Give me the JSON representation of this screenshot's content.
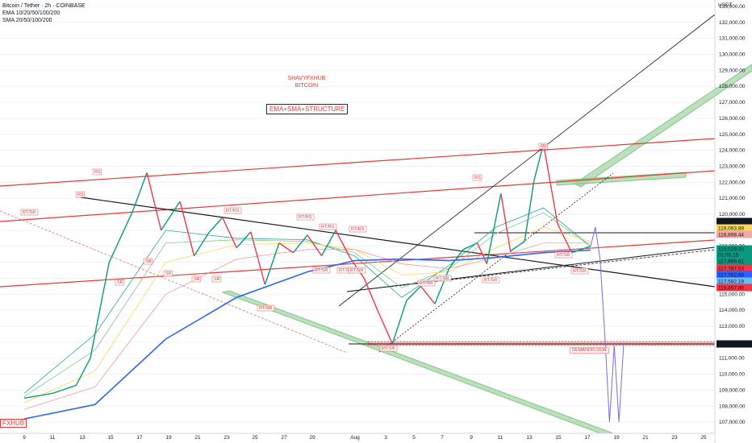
{
  "header": {
    "symbol_line": "Bitcoin / Tether · 2h · COINBASE",
    "ema_line": "EMA 10/20/50/100/200",
    "sma_line": "SMA 20/50/100/200"
  },
  "currency": "USDT",
  "annotations": {
    "author": "SHAVYFXHUB",
    "asset": "BITCOIN",
    "strategy": "EMA+SMA+STRUCTURE",
    "demand_label": "DEMANDFLOOR",
    "watermark": "FXHUB"
  },
  "structure_labels": [
    "RS",
    "RS",
    "RS",
    "RT/RS",
    "RT/RS",
    "RT/RS",
    "RT/RS",
    "RT/SR",
    "RT/SR",
    "RT/SR",
    "RT/SR",
    "RT/SR",
    "SR",
    "SR",
    "SR",
    "SR",
    "SR",
    "RT/SR",
    "RT/SR",
    "RT/SR",
    "RT/SR",
    "RT/SR",
    "RS",
    "RT/SR"
  ],
  "chart_data": {
    "type": "line",
    "title": "Bitcoin / Tether · 2h · COINBASE",
    "xlabel": "",
    "ylabel": "USDT",
    "x_ticks": [
      "9",
      "11",
      "13",
      "15",
      "17",
      "19",
      "21",
      "23",
      "25",
      "27",
      "29",
      "Aug",
      "3",
      "5",
      "7",
      "9",
      "11",
      "13",
      "15",
      "17",
      "19",
      "21",
      "23",
      "25"
    ],
    "y_ticks": [
      "107,000.00",
      "108,000.00",
      "109,000.00",
      "110,000.00",
      "111,000.00",
      "112,000.00",
      "113,000.00",
      "114,000.00",
      "115,000.00",
      "116,000.00",
      "117,000.00",
      "118,000.00",
      "119,000.00",
      "120,000.00",
      "121,000.00",
      "122,000.00",
      "123,000.00",
      "124,000.00",
      "125,000.00",
      "126,000.00",
      "127,000.00",
      "128,000.00",
      "129,000.00",
      "130,000.00",
      "131,000.00",
      "132,000.00",
      "133,000.00"
    ],
    "ylim": [
      106300,
      133400
    ],
    "price_tags": [
      {
        "value": "119,081.74",
        "color": "#131722"
      },
      {
        "value": "119,063.89",
        "color": "#f6d860"
      },
      {
        "value": "118,898.44",
        "color": "#f0a8a8"
      },
      {
        "value": "118,029.39",
        "color": "#089981"
      },
      {
        "value": "01:55:15",
        "color": "#089981"
      },
      {
        "value": "117,859.61",
        "color": "#089981"
      },
      {
        "value": "117,787.53",
        "color": "#f23645"
      },
      {
        "value": "117,762.69",
        "color": "#2962ff"
      },
      {
        "value": "117,582.19",
        "color": "#6fb8f8"
      },
      {
        "value": "116,857.85",
        "color": "#f23645"
      },
      {
        "value": "111,899.98",
        "color": "#131722"
      }
    ],
    "series": [
      {
        "values": [
          [
            0,
            108500
          ],
          [
            6,
            108800
          ],
          [
            11,
            109300
          ],
          [
            14,
            111000
          ],
          [
            18,
            117000
          ],
          [
            23,
            120200
          ],
          [
            26,
            122600
          ],
          [
            29,
            119000
          ],
          [
            33,
            120800
          ],
          [
            36,
            117400
          ],
          [
            39,
            118800
          ],
          [
            42,
            119800
          ],
          [
            45,
            117900
          ],
          [
            48,
            118900
          ],
          [
            51,
            115600
          ],
          [
            54,
            118200
          ],
          [
            57,
            117600
          ],
          [
            60,
            118700
          ],
          [
            63,
            117400
          ],
          [
            66,
            119000
          ],
          [
            69,
            117300
          ],
          [
            72,
            116000
          ],
          [
            75,
            113900
          ],
          [
            78,
            111900
          ],
          [
            81,
            114600
          ],
          [
            84,
            115500
          ],
          [
            87,
            114400
          ],
          [
            90,
            116600
          ],
          [
            93,
            117800
          ],
          [
            96,
            118200
          ],
          [
            98,
            116900
          ],
          [
            101,
            121300
          ],
          [
            103,
            117700
          ],
          [
            106,
            118300
          ],
          [
            108,
            122100
          ],
          [
            110,
            124400
          ],
          [
            113,
            119400
          ],
          [
            116,
            117600
          ],
          [
            119,
            117900
          ],
          [
            120,
            118000
          ]
        ]
      }
    ],
    "ema": [
      {
        "values": [
          [
            0,
            108800
          ],
          [
            15,
            112500
          ],
          [
            30,
            119000
          ],
          [
            45,
            118500
          ],
          [
            60,
            118400
          ],
          [
            70,
            117400
          ],
          [
            80,
            114800
          ],
          [
            90,
            116800
          ],
          [
            100,
            119200
          ],
          [
            110,
            120400
          ],
          [
            120,
            118000
          ]
        ]
      },
      {
        "values": [
          [
            0,
            108600
          ],
          [
            15,
            111500
          ],
          [
            30,
            118200
          ],
          [
            45,
            118400
          ],
          [
            60,
            118300
          ],
          [
            70,
            117600
          ],
          [
            80,
            115400
          ],
          [
            90,
            116600
          ],
          [
            100,
            118800
          ],
          [
            110,
            120100
          ],
          [
            120,
            118000
          ]
        ]
      },
      {
        "values": [
          [
            0,
            108200
          ],
          [
            15,
            110200
          ],
          [
            30,
            117000
          ],
          [
            45,
            118100
          ],
          [
            60,
            118200
          ],
          [
            70,
            117800
          ],
          [
            80,
            116200
          ],
          [
            90,
            116400
          ],
          [
            100,
            117900
          ],
          [
            110,
            119200
          ],
          [
            120,
            118300
          ]
        ]
      },
      {
        "values": [
          [
            0,
            107800
          ],
          [
            15,
            109200
          ],
          [
            30,
            115000
          ],
          [
            45,
            117200
          ],
          [
            60,
            117800
          ],
          [
            70,
            117800
          ],
          [
            80,
            116900
          ],
          [
            90,
            116600
          ],
          [
            100,
            117300
          ],
          [
            110,
            118200
          ],
          [
            120,
            118200
          ]
        ]
      },
      {
        "values": [
          [
            0,
            107200
          ],
          [
            15,
            108100
          ],
          [
            30,
            112200
          ],
          [
            45,
            114800
          ],
          [
            60,
            116400
          ],
          [
            70,
            117100
          ],
          [
            80,
            117200
          ],
          [
            90,
            117100
          ],
          [
            100,
            117300
          ],
          [
            110,
            117600
          ],
          [
            120,
            117760
          ]
        ]
      }
    ],
    "projection": [
      [
        120,
        118000
      ],
      [
        121,
        119200
      ],
      [
        122,
        117200
      ],
      [
        123,
        112500
      ],
      [
        124,
        107000
      ],
      [
        125,
        111800
      ],
      [
        126,
        107000
      ],
      [
        127,
        111900
      ]
    ],
    "levels": [
      111899.98,
      119081.74
    ]
  }
}
